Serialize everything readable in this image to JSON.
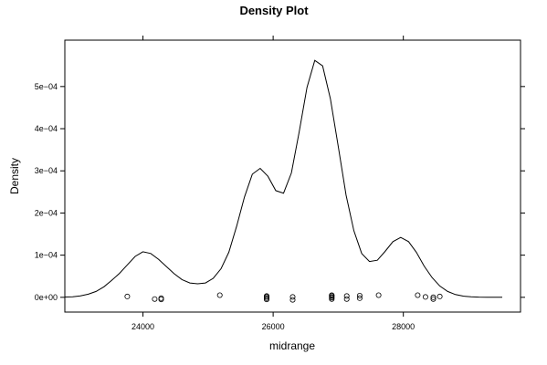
{
  "chart_data": {
    "type": "line",
    "title": "Density Plot",
    "xlabel": "midrange",
    "ylabel": "Density",
    "xlim": [
      22800,
      29800
    ],
    "ylim": [
      -3.5e-05,
      0.00061
    ],
    "x_ticks": [
      {
        "value": 24000,
        "label": "24000"
      },
      {
        "value": 26000,
        "label": "26000"
      },
      {
        "value": 28000,
        "label": "28000"
      }
    ],
    "y_ticks": [
      {
        "value": 0,
        "label": "0e+00"
      },
      {
        "value": 0.0001,
        "label": "1e−04"
      },
      {
        "value": 0.0002,
        "label": "2e−04"
      },
      {
        "value": 0.0003,
        "label": "3e−04"
      },
      {
        "value": 0.0004,
        "label": "4e−04"
      },
      {
        "value": 0.0005,
        "label": "5e−04"
      }
    ],
    "series": [
      {
        "x": [
          22800,
          22920,
          23040,
          23160,
          23280,
          23400,
          23520,
          23640,
          23760,
          23880,
          24000,
          24120,
          24240,
          24360,
          24480,
          24600,
          24720,
          24840,
          24960,
          25080,
          25200,
          25320,
          25440,
          25560,
          25680,
          25800,
          25920,
          26040,
          26160,
          26280,
          26400,
          26520,
          26640,
          26760,
          26880,
          27000,
          27120,
          27240,
          27360,
          27480,
          27600,
          27720,
          27840,
          27960,
          28080,
          28200,
          28320,
          28440,
          28560,
          28680,
          28800,
          28920,
          29040,
          29160,
          29280,
          29400,
          29520
        ],
        "y": [
          8e-07,
          1.4e-06,
          3.5e-06,
          7.5e-06,
          1.4e-05,
          2.5e-05,
          4e-05,
          5.7e-05,
          7.7e-05,
          9.7e-05,
          0.000108,
          0.000104,
          9e-05,
          7.3e-05,
          5.6e-05,
          4.2e-05,
          3.4e-05,
          3.2e-05,
          3.4e-05,
          4.5e-05,
          6.8e-05,
          0.000107,
          0.000169,
          0.000238,
          0.000292,
          0.000306,
          0.000287,
          0.000253,
          0.000247,
          0.000295,
          0.000392,
          0.000498,
          0.000562,
          0.000549,
          0.000471,
          0.000358,
          0.000242,
          0.000158,
          0.000104,
          8.5e-05,
          8.8e-05,
          0.000109,
          0.000132,
          0.000142,
          0.000132,
          0.000107,
          7.4e-05,
          4.7e-05,
          2.7e-05,
          1.4e-05,
          6.6e-06,
          2.8e-06,
          1.2e-06,
          5e-07,
          2e-07,
          1e-07,
          4e-08
        ]
      }
    ],
    "rug_points": [
      {
        "x": 23760,
        "y": 2e-06
      },
      {
        "x": 24180,
        "y": -4e-06
      },
      {
        "x": 24280,
        "y": -2e-06
      },
      {
        "x": 24280,
        "y": -5e-06
      },
      {
        "x": 25180,
        "y": 5e-06
      },
      {
        "x": 25900,
        "y": 1e-06
      },
      {
        "x": 25900,
        "y": -5e-06
      },
      {
        "x": 25900,
        "y": 3e-06
      },
      {
        "x": 25900,
        "y": -2e-06
      },
      {
        "x": 26300,
        "y": 1e-06
      },
      {
        "x": 26300,
        "y": -6e-06
      },
      {
        "x": 26900,
        "y": -4e-06
      },
      {
        "x": 26900,
        "y": 4e-06
      },
      {
        "x": 26900,
        "y": 1e-06
      },
      {
        "x": 26900,
        "y": -1e-06
      },
      {
        "x": 26900,
        "y": 5e-06
      },
      {
        "x": 27130,
        "y": 3e-06
      },
      {
        "x": 27130,
        "y": -4e-06
      },
      {
        "x": 27330,
        "y": -2e-06
      },
      {
        "x": 27330,
        "y": 4e-06
      },
      {
        "x": 27620,
        "y": 5e-06
      },
      {
        "x": 28220,
        "y": 5e-06
      },
      {
        "x": 28340,
        "y": 1e-06
      },
      {
        "x": 28460,
        "y": -4e-06
      },
      {
        "x": 28460,
        "y": 0.0
      },
      {
        "x": 28560,
        "y": 2e-06
      }
    ],
    "grid": false,
    "legend": "none"
  }
}
